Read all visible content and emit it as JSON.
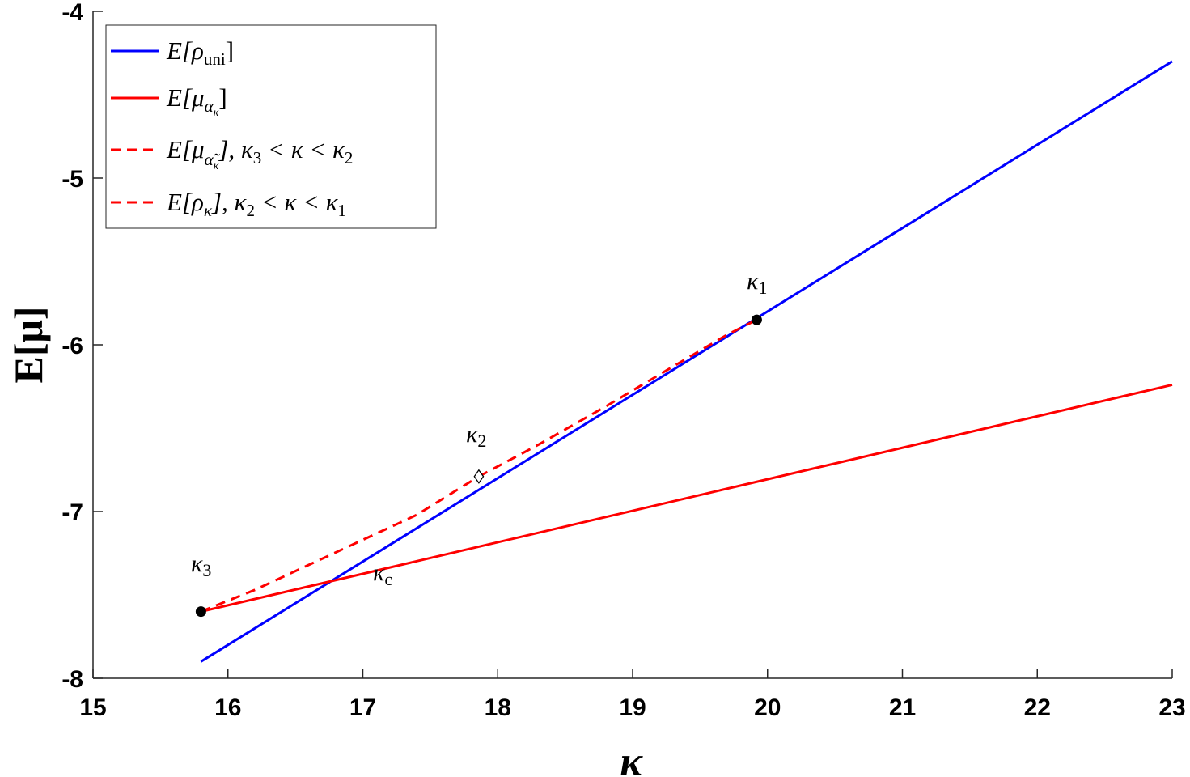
{
  "chart_data": {
    "type": "line",
    "title": "",
    "xlabel": "κ",
    "ylabel": "E[μ]",
    "xlim": [
      15,
      23
    ],
    "ylim": [
      -8,
      -4
    ],
    "xticks": [
      "15",
      "16",
      "17",
      "18",
      "19",
      "20",
      "21",
      "22",
      "23"
    ],
    "yticks": [
      "-8",
      "-7",
      "-6",
      "-5",
      "-4"
    ],
    "grid": false,
    "legend_position": "top-left",
    "series": [
      {
        "name": "E[ρ_uni]",
        "color": "#0000ff",
        "style": "solid",
        "x": [
          15.8,
          23.0
        ],
        "y": [
          -7.9,
          -4.3
        ]
      },
      {
        "name": "E[μ_{α_κ}]",
        "color": "#ff0000",
        "style": "solid",
        "x": [
          15.8,
          23.0
        ],
        "y": [
          -7.6,
          -6.24
        ]
      },
      {
        "name": "E[μ_{α̃_κ}], κ3 < κ < κ2",
        "color": "#ff0000",
        "style": "dashed",
        "x": [
          15.8,
          16.2,
          16.6,
          17.0,
          17.4,
          17.86
        ],
        "y": [
          -7.6,
          -7.47,
          -7.32,
          -7.17,
          -7.02,
          -6.79
        ]
      },
      {
        "name": "E[ρ_κ], κ2 < κ < κ1",
        "color": "#ff0000",
        "style": "dashed",
        "x": [
          17.86,
          18.3,
          18.8,
          19.3,
          19.7,
          19.92
        ],
        "y": [
          -6.79,
          -6.6,
          -6.37,
          -6.13,
          -5.94,
          -5.85
        ]
      }
    ],
    "markers": [
      {
        "label": "κ1",
        "x": 19.92,
        "y": -5.85,
        "shape": "filled-circle"
      },
      {
        "label": "κ2",
        "x": 17.86,
        "y": -6.79,
        "shape": "open-diamond"
      },
      {
        "label": "κ3",
        "x": 15.8,
        "y": -7.6,
        "shape": "filled-circle"
      },
      {
        "label": "κc",
        "x": 17.12,
        "y": -7.25,
        "shape": "none"
      }
    ]
  },
  "legend": {
    "entries": [
      {
        "main": "E",
        "open": "[ρ",
        "sub": "uni",
        "close": "]"
      },
      {
        "main": "E",
        "open": "[μ",
        "sub": "α",
        "subsub": "κ",
        "close": "]"
      },
      {
        "main": "E",
        "open": "[μ",
        "sub": "α̃",
        "subsub": "κ",
        "close": "], κ",
        "k1": "3",
        "mid": " < κ < κ",
        "k2": "2"
      },
      {
        "main": "E",
        "open": "[ρ",
        "sub": "κ",
        "close": "], κ",
        "k1": "2",
        "mid": " < κ < κ",
        "k2": "1"
      }
    ]
  },
  "annotations": {
    "k1": {
      "base": "κ",
      "sub": "1"
    },
    "k2": {
      "base": "κ",
      "sub": "2"
    },
    "k3": {
      "base": "κ",
      "sub": "3"
    },
    "kc": {
      "base": "κ",
      "sub": "c"
    }
  }
}
